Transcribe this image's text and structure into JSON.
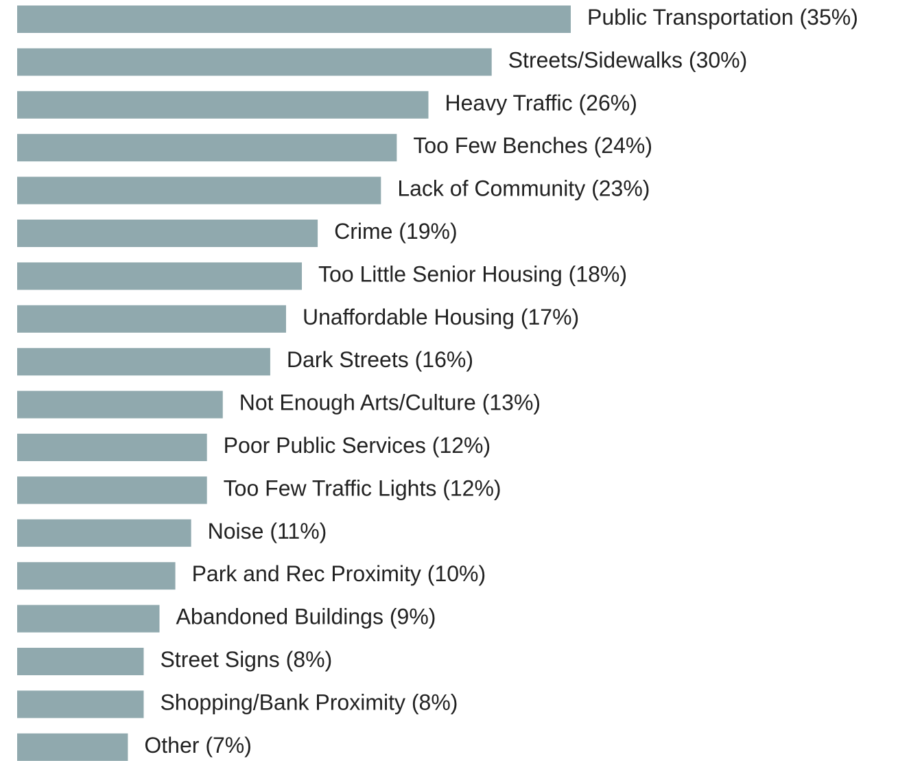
{
  "chart_data": {
    "type": "bar",
    "orientation": "horizontal",
    "categories": [
      "Public Transportation",
      "Streets/Sidewalks",
      "Heavy Traffic",
      "Too Few Benches",
      "Lack of Community",
      "Crime",
      "Too Little Senior Housing",
      "Unaffordable Housing",
      "Dark Streets",
      "Not Enough Arts/Culture",
      "Poor Public Services",
      "Too Few Traffic Lights",
      "Noise",
      "Park and Rec Proximity",
      "Abandoned Buildings",
      "Street Signs",
      "Shopping/Bank Proximity",
      "Other"
    ],
    "values": [
      35,
      30,
      26,
      24,
      23,
      19,
      18,
      17,
      16,
      13,
      12,
      12,
      11,
      10,
      9,
      8,
      8,
      7
    ],
    "value_labels": [
      "(35%)",
      "(30%)",
      "(26%)",
      "(24%)",
      "(23%)",
      "(19%)",
      "(18%)",
      "(17%)",
      "(16%)",
      "(13%)",
      "(12%)",
      "(12%)",
      "(11%)",
      "(10%)",
      "(9%)",
      "(8%)",
      "(8%)",
      "(7%)"
    ],
    "color": "#90a9ae",
    "xlim": [
      0,
      35
    ]
  }
}
